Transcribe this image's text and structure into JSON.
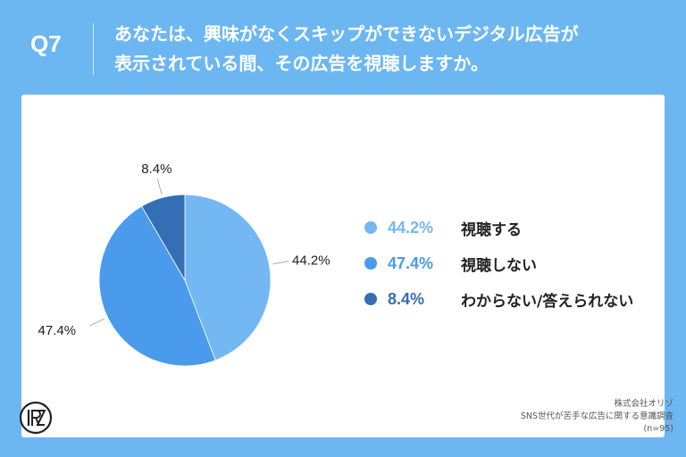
{
  "header": {
    "question_number": "Q7",
    "question_line1": "あなたは、興味がなくスキップができないデジタル広告が",
    "question_line2": "表示されている間、その広告を視聴しますか。"
  },
  "chart_data": {
    "type": "pie",
    "title": "",
    "categories": [
      "視聴する",
      "視聴しない",
      "わからない/答えられない"
    ],
    "values": [
      44.2,
      47.4,
      8.4
    ],
    "value_labels": [
      "44.2%",
      "47.4%",
      "8.4%"
    ],
    "colors": [
      "#73b8f3",
      "#4a9bec",
      "#346eb4"
    ],
    "start": "top, clockwise",
    "legend_placement": "right"
  },
  "footer": {
    "company": "株式会社オリゾ",
    "survey": "SNS世代が苦手な広告に関する意識調査",
    "sample": "(n=95)"
  },
  "colors": {
    "background": "#6cb7f2",
    "card": "#ffffff"
  }
}
